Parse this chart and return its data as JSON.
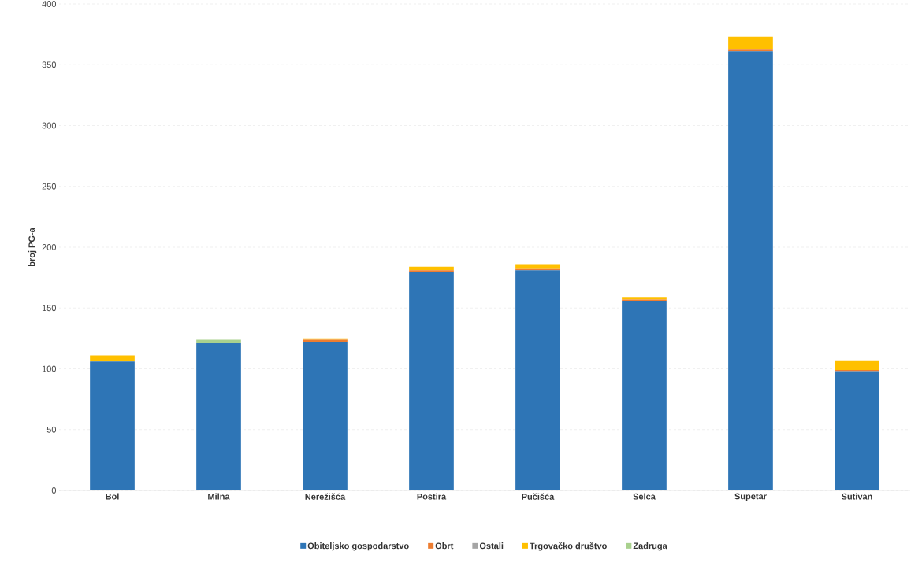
{
  "chart_data": {
    "type": "bar",
    "stacked": true,
    "ylabel": "broj PG-a",
    "categories": [
      "Bol",
      "Milna",
      "Nerežišća",
      "Postira",
      "Pučišća",
      "Selca",
      "Supetar",
      "Sutivan"
    ],
    "series": [
      {
        "name": "Obiteljsko gospodarstvo",
        "color": "#2e75b6",
        "values": [
          106,
          121,
          122,
          180,
          181,
          156,
          361,
          98
        ]
      },
      {
        "name": "Obrt",
        "color": "#ed7d31",
        "values": [
          0,
          0,
          2,
          1,
          1,
          1,
          2,
          1
        ]
      },
      {
        "name": "Ostali",
        "color": "#a5a5a5",
        "values": [
          0,
          0,
          0,
          0,
          0,
          0,
          0,
          0
        ]
      },
      {
        "name": "Trgovačko društvo",
        "color": "#ffc000",
        "values": [
          5,
          0,
          1,
          3,
          4,
          2,
          10,
          8
        ]
      },
      {
        "name": "Zadruga",
        "color": "#a9d18e",
        "values": [
          0,
          3,
          0,
          0,
          0,
          0,
          0,
          0
        ]
      }
    ],
    "ylim": [
      0,
      400
    ],
    "yticks": [
      0,
      50,
      100,
      150,
      200,
      250,
      300,
      350,
      400
    ],
    "grid": "y",
    "legend": "bottom"
  }
}
